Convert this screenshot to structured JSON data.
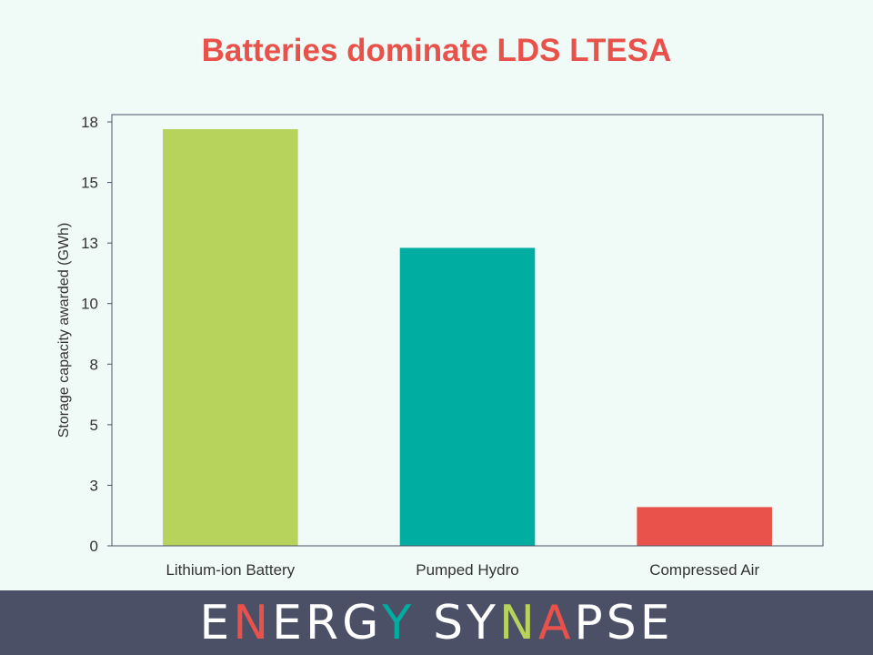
{
  "chart_data": {
    "type": "bar",
    "title": "Batteries dominate LDS LTESA",
    "ylabel": "Storage capacity awarded (GWh)",
    "xlabel": "",
    "categories": [
      "Lithium-ion Battery",
      "Pumped Hydro",
      "Compressed Air"
    ],
    "values": [
      17.2,
      12.3,
      1.6
    ],
    "colors": [
      "#b8d35b",
      "#00ada1",
      "#e8524a"
    ],
    "ylim": [
      0,
      17.8
    ],
    "yticks": [
      0,
      2.5,
      5,
      7.5,
      10,
      12.5,
      15,
      17.5
    ],
    "ytick_labels": [
      "0",
      "3",
      "5",
      "8",
      "10",
      "13",
      "15",
      "18"
    ],
    "grid": false
  },
  "brand": {
    "letters": [
      "E",
      "N",
      "E",
      "R",
      "G",
      "Y",
      " ",
      "S",
      "Y",
      "N",
      "A",
      "P",
      "S",
      "E"
    ],
    "letter_colors": [
      "#ffffff",
      "#e8524a",
      "#ffffff",
      "#ffffff",
      "#ffffff",
      "#00ada1",
      "#ffffff",
      "#ffffff",
      "#ffffff",
      "#b8d35b",
      "#e8524a",
      "#ffffff",
      "#ffffff",
      "#ffffff"
    ]
  }
}
